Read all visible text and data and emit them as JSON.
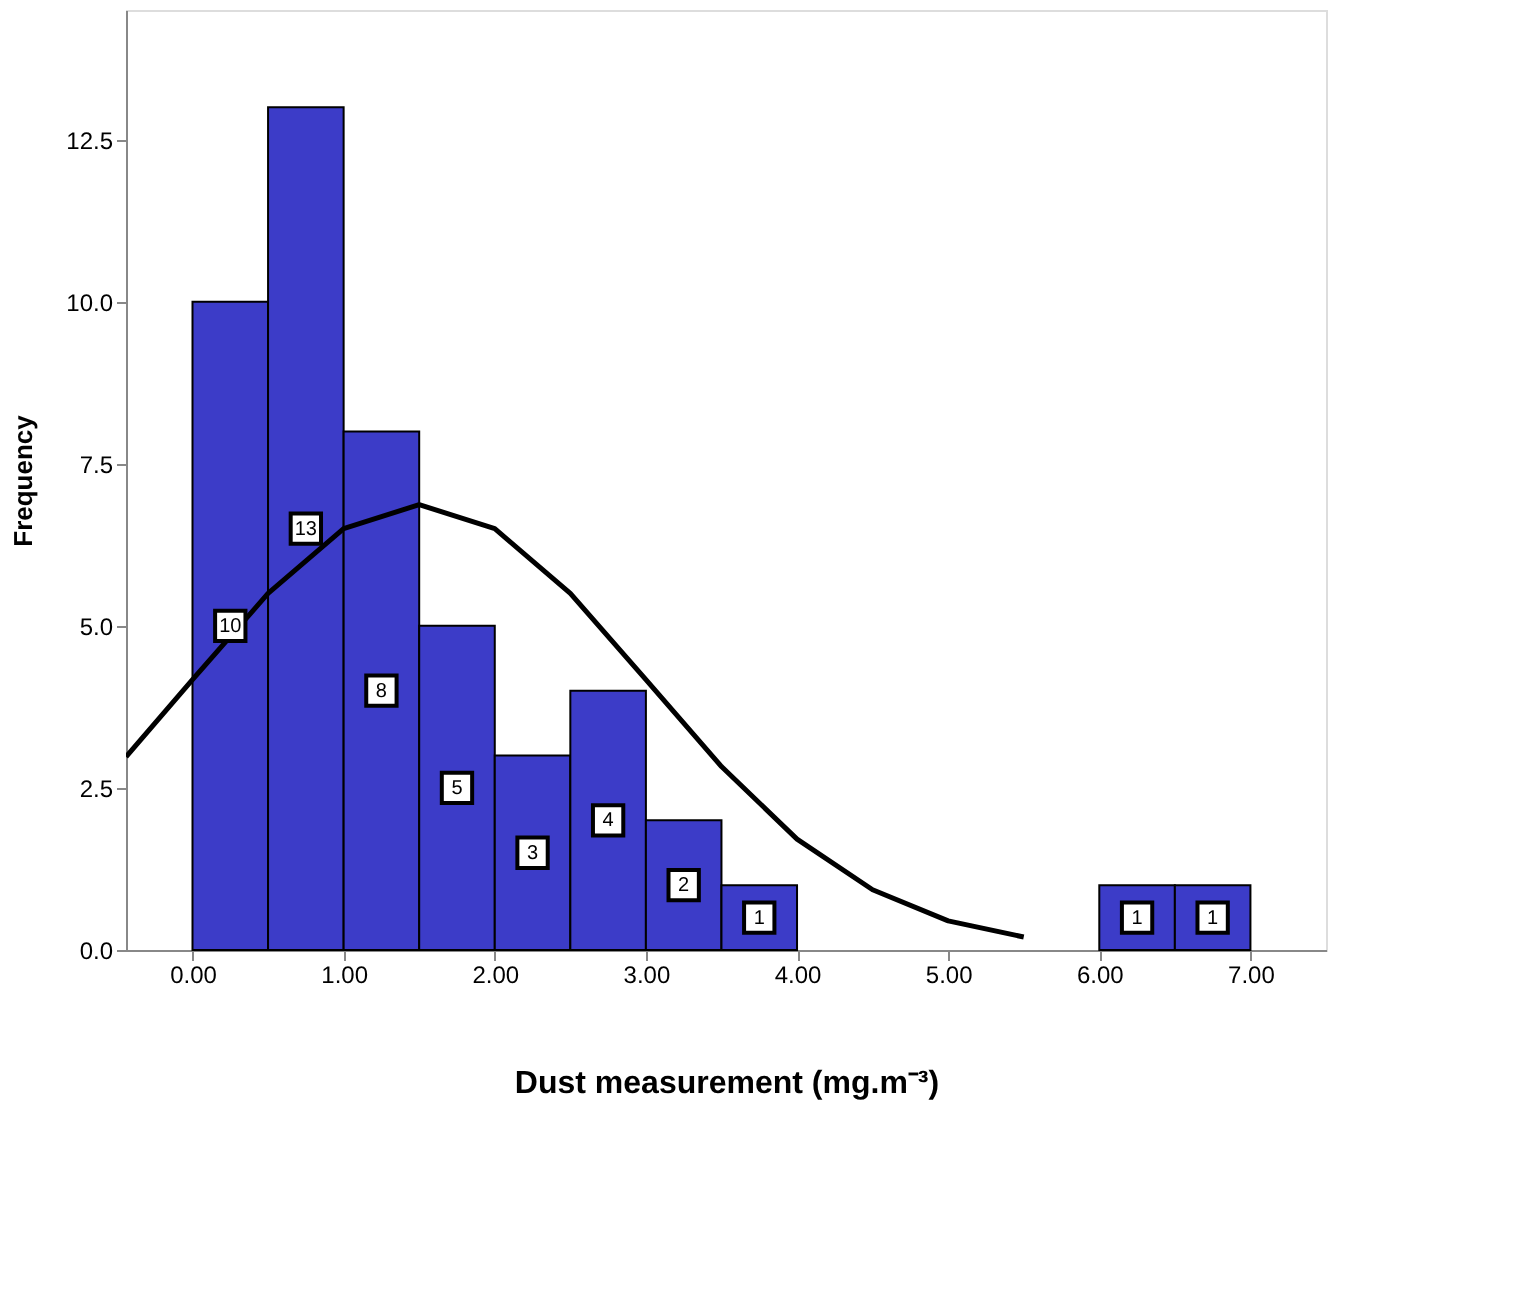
{
  "chart_data": {
    "type": "histogram",
    "xlabel": "Dust measurement (mg.m⁻³)",
    "ylabel": "Frequency",
    "series": [
      {
        "bins": [
          0,
          0.5,
          1,
          1.5,
          2,
          2.5,
          3,
          3.5,
          4,
          4.5,
          5,
          5.5,
          6,
          6.5,
          7
        ],
        "values": [
          10,
          13,
          8,
          5,
          3,
          4,
          2,
          1,
          null,
          null,
          null,
          null,
          1,
          1
        ],
        "value_labels": [
          "10",
          "13",
          "8",
          "5",
          "3",
          "4",
          "2",
          "1",
          null,
          null,
          null,
          null,
          "1",
          "1"
        ],
        "color": "#3c3cc8"
      },
      {
        "type": "line",
        "x": [
          -0.44,
          0,
          0.5,
          1,
          1.5,
          2,
          2.5,
          3,
          3.5,
          4,
          4.5,
          5,
          5.5
        ],
        "values": [
          2.98,
          4.17,
          5.5,
          6.5,
          6.87,
          6.5,
          5.5,
          4.17,
          2.83,
          1.71,
          0.93,
          0.45,
          0.2
        ],
        "color": "#000000"
      }
    ],
    "xlim": [
      -0.44,
      7.5
    ],
    "ylim": [
      0,
      14.5
    ],
    "xticks": [
      {
        "value": 0,
        "label": "0.00"
      },
      {
        "value": 1,
        "label": "1.00"
      },
      {
        "value": 2,
        "label": "2.00"
      },
      {
        "value": 3,
        "label": "3.00"
      },
      {
        "value": 4,
        "label": "4.00"
      },
      {
        "value": 5,
        "label": "5.00"
      },
      {
        "value": 6,
        "label": "6.00"
      },
      {
        "value": 7,
        "label": "7.00"
      }
    ],
    "yticks": [
      {
        "value": 0,
        "label": "0.0"
      },
      {
        "value": 2.5,
        "label": "2.5"
      },
      {
        "value": 5,
        "label": "5.0"
      },
      {
        "value": 7.5,
        "label": "7.5"
      },
      {
        "value": 10,
        "label": "10.0"
      },
      {
        "value": 12.5,
        "label": "12.5"
      }
    ],
    "grid": false
  }
}
